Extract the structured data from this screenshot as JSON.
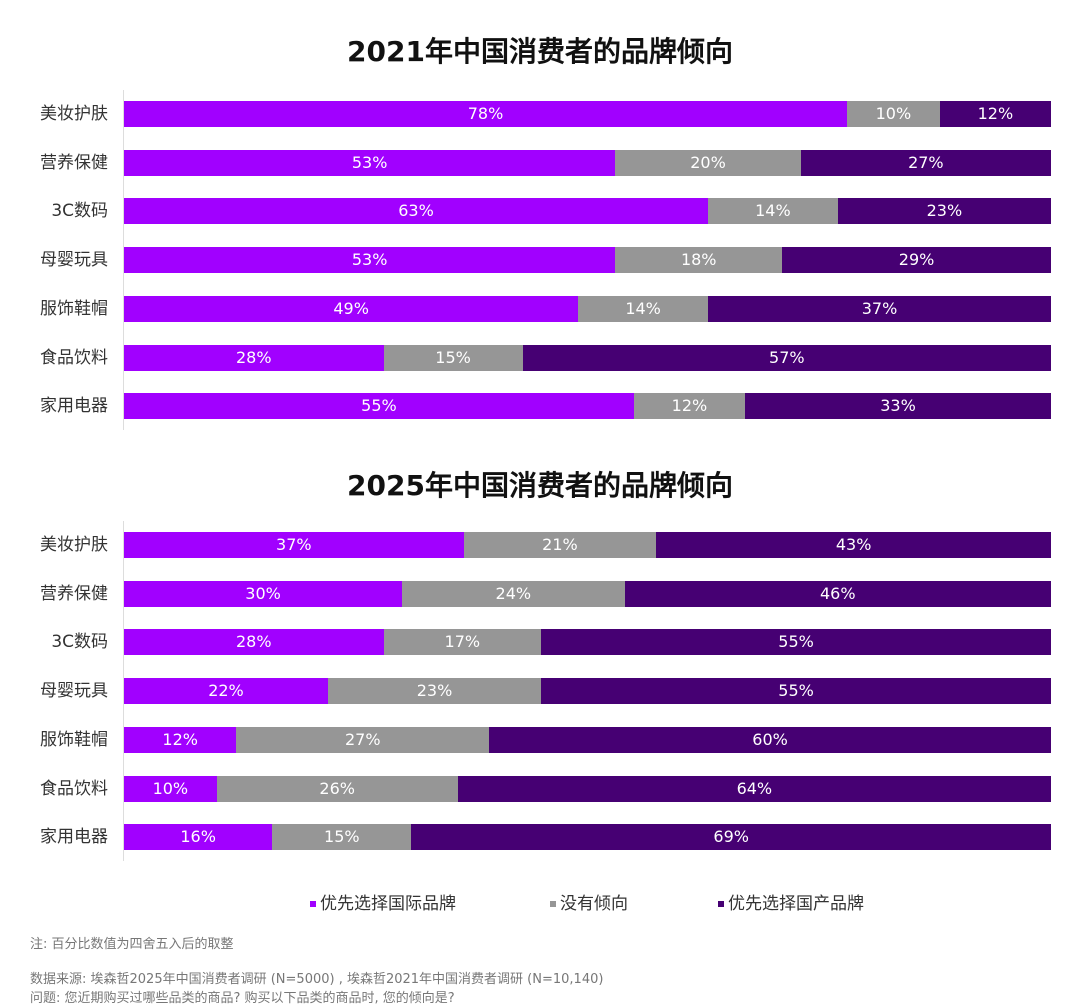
{
  "colors": {
    "international": "#a100ff",
    "neutral": "#969696",
    "domestic": "#460073"
  },
  "legend": [
    "优先选择国际品牌",
    "没有倾向",
    "优先选择国产品牌"
  ],
  "chart_data": [
    {
      "type": "bar",
      "stacked": true,
      "orientation": "horizontal",
      "title": "2021年中国消费者的品牌倾向",
      "categories": [
        "美妆护肤",
        "营养保健",
        "3C数码",
        "母婴玩具",
        "服饰鞋帽",
        "食品饮料",
        "家用电器"
      ],
      "series": [
        {
          "name": "优先选择国际品牌",
          "values": [
            78,
            53,
            63,
            53,
            49,
            28,
            55
          ]
        },
        {
          "name": "没有倾向",
          "values": [
            10,
            20,
            14,
            18,
            14,
            15,
            12
          ]
        },
        {
          "name": "优先选择国产品牌",
          "values": [
            12,
            27,
            23,
            29,
            37,
            57,
            33
          ]
        }
      ],
      "xlim": [
        0,
        100
      ],
      "legend": "bottom"
    },
    {
      "type": "bar",
      "stacked": true,
      "orientation": "horizontal",
      "title": "2025年中国消费者的品牌倾向",
      "categories": [
        "美妆护肤",
        "营养保健",
        "3C数码",
        "母婴玩具",
        "服饰鞋帽",
        "食品饮料",
        "家用电器"
      ],
      "series": [
        {
          "name": "优先选择国际品牌",
          "values": [
            37,
            30,
            28,
            22,
            12,
            10,
            16
          ]
        },
        {
          "name": "没有倾向",
          "values": [
            21,
            24,
            17,
            23,
            27,
            26,
            15
          ]
        },
        {
          "name": "优先选择国产品牌",
          "values": [
            43,
            46,
            55,
            55,
            60,
            64,
            69
          ]
        }
      ],
      "xlim": [
        0,
        100
      ],
      "legend": "bottom"
    }
  ],
  "notes": {
    "note": "注: 百分比数值为四舍五入后的取整",
    "source": "数据来源: 埃森哲2025年中国消费者调研 (N=5000) , 埃森哲2021年中国消费者调研 (N=10,140)",
    "question": "问题: 您近期购买过哪些品类的商品? 购买以下品类的商品时, 您的倾向是?"
  }
}
